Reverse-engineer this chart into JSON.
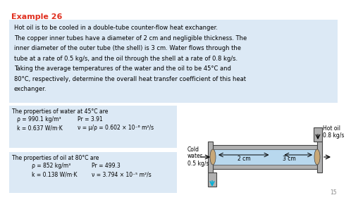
{
  "title": "Example 26",
  "title_color": "#e03020",
  "bg_light": "#dce9f5",
  "white": "#ffffff",
  "problem_text_line1": "Hot oil is to be cooled in a double-tube counter-flow heat exchanger.",
  "problem_text_line2": "The copper inner tubes have a diameter of 2 cm and negligible thickness. The",
  "problem_text_line3": "inner diameter of the outer tube (the shell) is 3 cm. Water flows through the",
  "problem_text_line4": "tube at a rate of 0.5 kg/s, and the oil through the shell at a rate of 0.8 kg/s.",
  "problem_text_line5": "Taking the average temperatures of the water and the oil to be 45°C and",
  "problem_text_line6": "80°C, respectively, determine the overall heat transfer coefficient of this heat",
  "problem_text_line7": "exchanger.",
  "water_props_title": "The properties of water at 45°C are",
  "water_prop1a": "ρ = 990.1 kg/m³",
  "water_prop1b": "Pr = 3.91",
  "water_prop2a": "k = 0.637 W/m·K",
  "water_prop2b": "ν = μ/ρ = 0.602 × 10⁻⁶ m²/s",
  "oil_props_title": "The properties of oil at 80°C are",
  "oil_prop1a": "ρ = 852 kg/m³",
  "oil_prop1b": "Pr = 499.3",
  "oil_prop2a": "k = 0.138 W/m·K",
  "oil_prop2b": "ν = 3.794 × 10⁻⁵ m²/s",
  "label_2cm": "2 cm",
  "label_3cm": "3 cm",
  "hot_oil_label": "Hot oil",
  "hot_oil_flow": "0.8 kg/s",
  "cold_water_label1": "Cold",
  "cold_water_label2": "water",
  "cold_water_flow": "0.5 kg/s",
  "page_number": "15",
  "shell_color": "#b0b0b0",
  "inner_tube_color": "#b8d8ee",
  "arrow_color_cyan": "#00b0d8"
}
